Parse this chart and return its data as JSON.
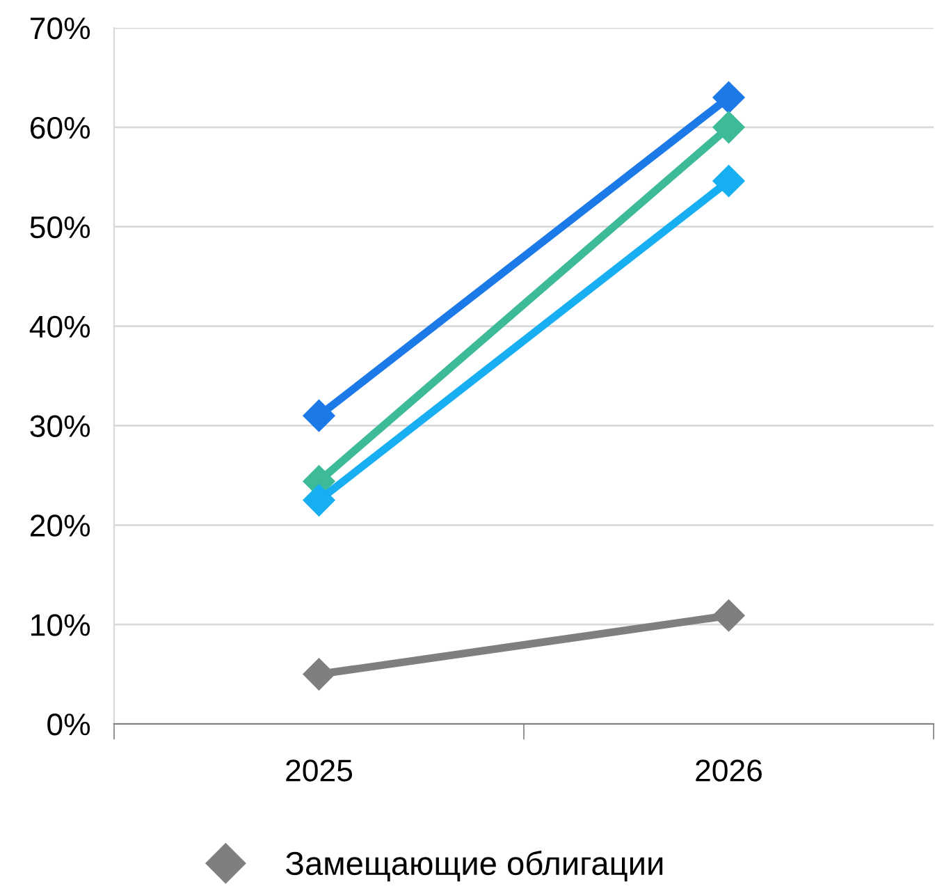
{
  "chart_data": {
    "type": "line",
    "categories": [
      "2025",
      "2026"
    ],
    "series": [
      {
        "color": "#1c7ae8",
        "values": [
          31.0,
          63.0
        ]
      },
      {
        "color": "#3dbb98",
        "values": [
          24.4,
          60.0
        ]
      },
      {
        "color": "#17aef2",
        "values": [
          22.5,
          54.6
        ]
      },
      {
        "name": "Замещающие облигации",
        "color": "#7f7f7f",
        "values": [
          5.0,
          10.9
        ]
      }
    ],
    "ylim": [
      0,
      70
    ],
    "yticks": [
      {
        "value": 0,
        "label": "0%"
      },
      {
        "value": 10,
        "label": "10%"
      },
      {
        "value": 20,
        "label": "20%"
      },
      {
        "value": 30,
        "label": "30%"
      },
      {
        "value": 40,
        "label": "40%"
      },
      {
        "value": 50,
        "label": "50%"
      },
      {
        "value": 60,
        "label": "60%"
      },
      {
        "value": 70,
        "label": "70%"
      }
    ],
    "grid": "y",
    "legend": "bottom",
    "marker": "diamond",
    "line_style": "solid"
  }
}
